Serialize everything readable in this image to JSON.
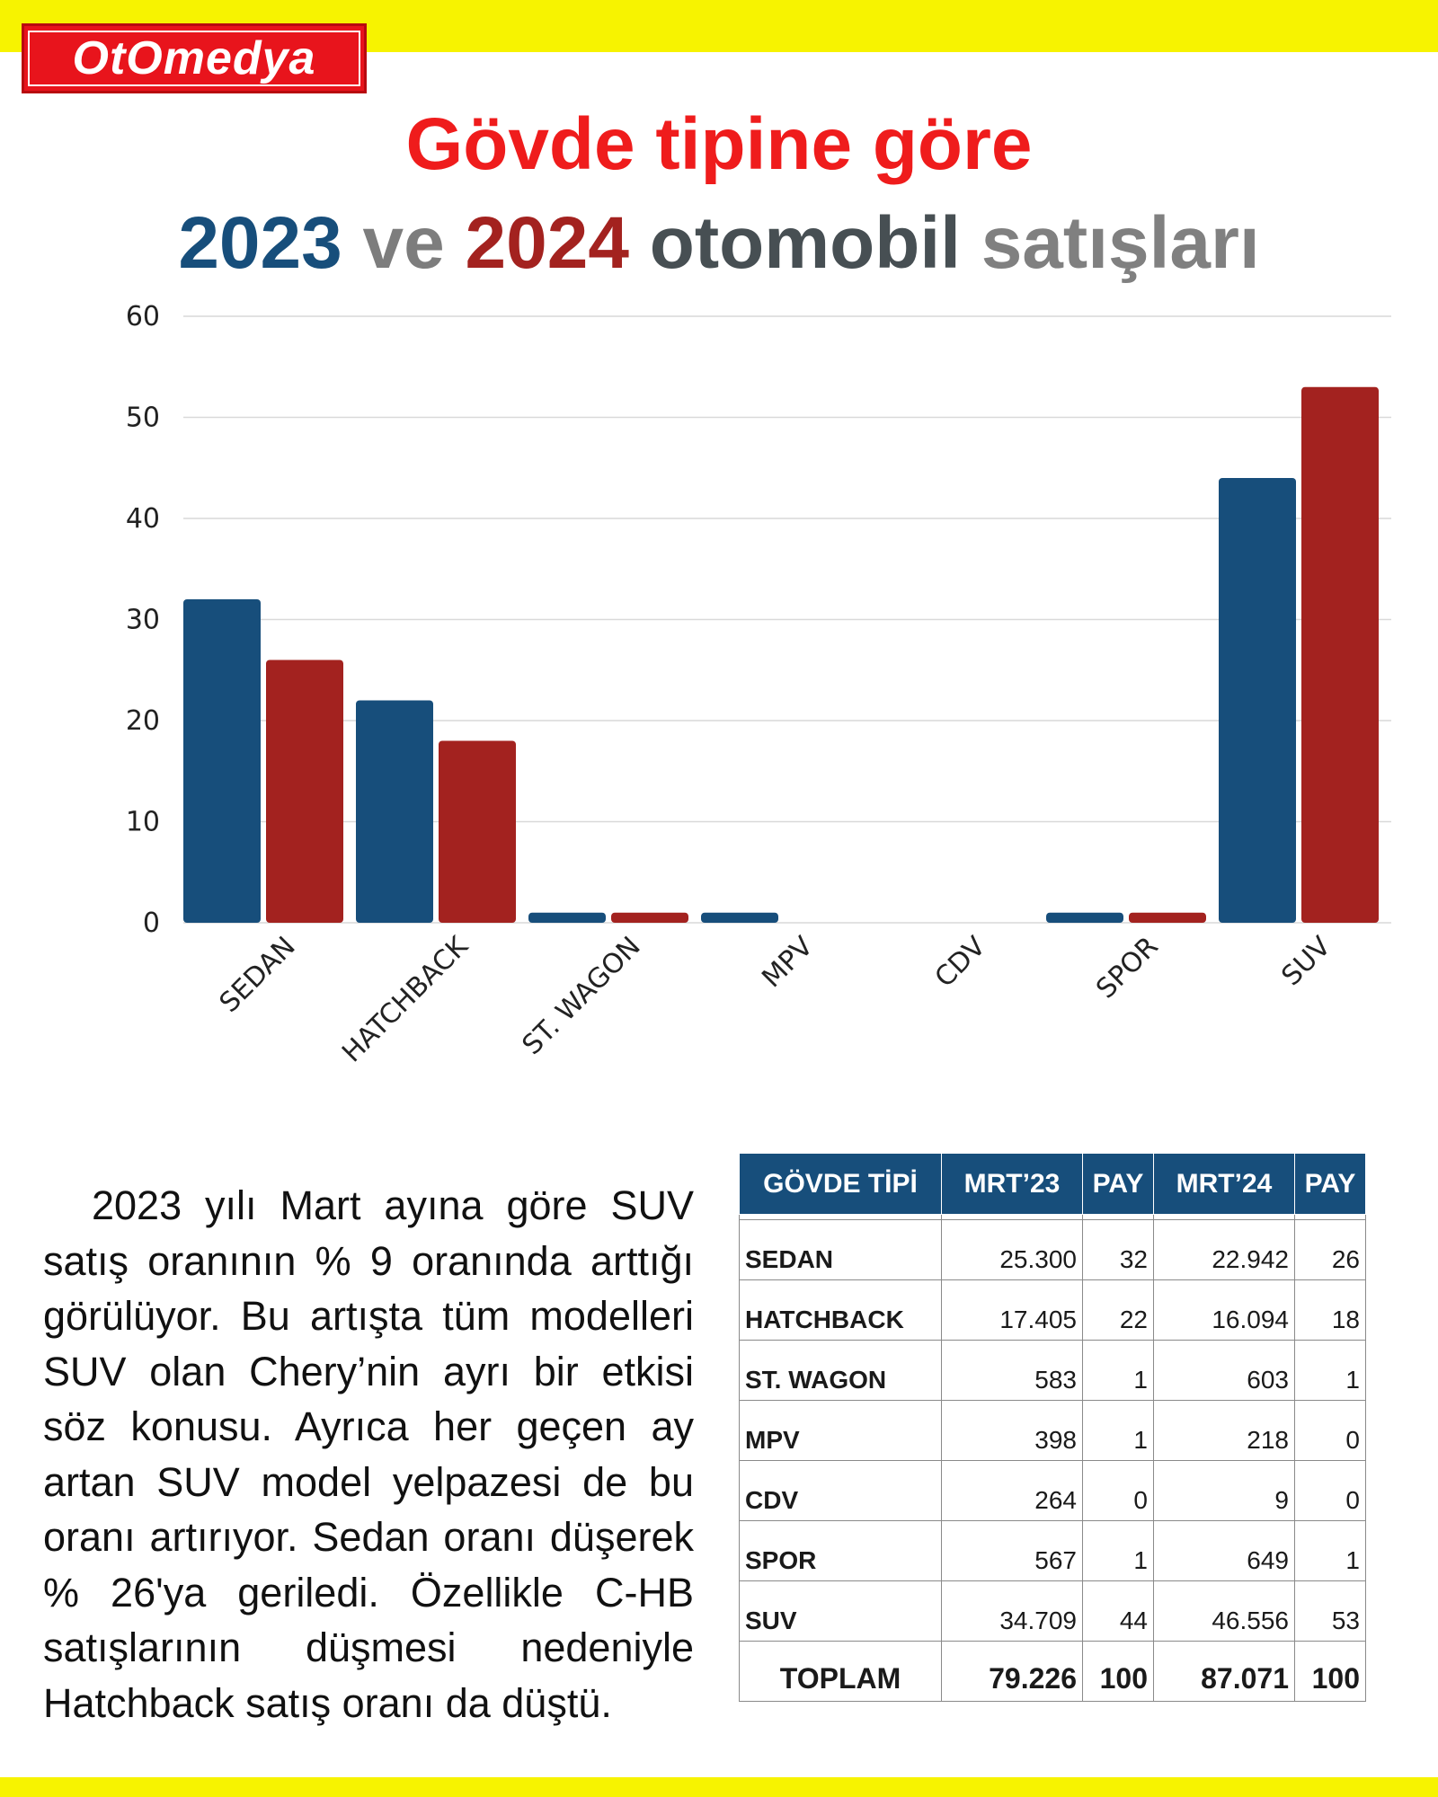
{
  "logo": {
    "text": "OtOmedya"
  },
  "title": {
    "line1": "Gövde tipine göre",
    "line2": {
      "year1": "2023",
      "ve": "ve",
      "year2": "2024",
      "word1": "otomobil",
      "word2": "satışları"
    }
  },
  "colors": {
    "series2023": "#174e7b",
    "series2024": "#a3221f",
    "title_red": "#ef1c1c",
    "band_yellow": "#f7f300"
  },
  "chart_data": {
    "type": "bar",
    "categories": [
      "SEDAN",
      "HATCHBACK",
      "ST. WAGON",
      "MPV",
      "CDV",
      "SPOR",
      "SUV"
    ],
    "series": [
      {
        "name": "2023",
        "values": [
          32,
          22,
          1,
          1,
          0,
          1,
          44
        ]
      },
      {
        "name": "2024",
        "values": [
          26,
          18,
          1,
          0,
          0,
          1,
          53
        ]
      }
    ],
    "ylim": [
      0,
      60
    ],
    "yticks": [
      0,
      10,
      20,
      30,
      40,
      50,
      60
    ],
    "grid": true,
    "xlabel": "",
    "ylabel": ""
  },
  "paragraph": "2023 yılı Mart ayına göre SUV satış oranının % 9 oranında arttığı görülüyor. Bu artışta tüm modelleri SUV olan Chery’nin ayrı bir etkisi söz konusu. Ayrıca her geçen ay artan SUV model yelpazesi de bu oranı artırıyor. Sedan oranı düşerek % 26'ya geriledi. Özellikle C-HB satışlarının düşmesi nedeniyle Hatchback satış oranı da düştü.",
  "table": {
    "headers": [
      "GÖVDE TİPİ",
      "MRT’23",
      "PAY",
      "MRT’24",
      "PAY"
    ],
    "rows": [
      [
        "SEDAN",
        "25.300",
        "32",
        "22.942",
        "26"
      ],
      [
        "HATCHBACK",
        "17.405",
        "22",
        "16.094",
        "18"
      ],
      [
        "ST. WAGON",
        "583",
        "1",
        "603",
        "1"
      ],
      [
        "MPV",
        "398",
        "1",
        "218",
        "0"
      ],
      [
        "CDV",
        "264",
        "0",
        "9",
        "0"
      ],
      [
        "SPOR",
        "567",
        "1",
        "649",
        "1"
      ],
      [
        "SUV",
        "34.709",
        "44",
        "46.556",
        "53"
      ]
    ],
    "total": [
      "TOPLAM",
      "79.226",
      "100",
      "87.071",
      "100"
    ]
  }
}
